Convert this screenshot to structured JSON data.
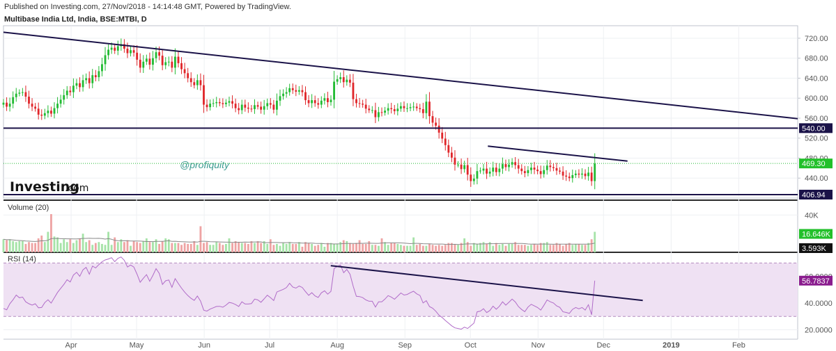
{
  "header": {
    "published": "Published on Investing.com, 27/Nov/2018 - 14:14:48 GMT, Powered by TradingView.",
    "symbol": "Multibase India Ltd, India, BSE:MTBI, D"
  },
  "watermark": {
    "brand": "Investing",
    "suffix": ".com",
    "tag": "@profiquity"
  },
  "colors": {
    "up": "#22bb33",
    "down": "#e0262a",
    "trendline": "#1a1248",
    "rsi_line": "#b06bc8",
    "rsi_band": "#efe1f3",
    "price_badge": "#22c02a",
    "level_badge": "#1a1248",
    "rsi_badge": "#8a1c8e"
  },
  "chart_data": [
    {
      "type": "candlestick",
      "title": "Multibase India Ltd, India, BSE:MTBI, D",
      "x_labels": [
        "Apr",
        "May",
        "Jun",
        "Jul",
        "Aug",
        "Sep",
        "Oct",
        "Nov",
        "Dec",
        "2019",
        "Feb"
      ],
      "y_ticks": [
        720,
        680,
        640,
        600,
        560,
        520,
        480,
        440
      ],
      "ylim": [
        400,
        745
      ],
      "last_close": "469.30",
      "levels": [
        "540.00",
        "406.94"
      ],
      "trendlines": [
        {
          "from": [
            "2018-03-01",
            732
          ],
          "to": [
            "2019-02-28",
            559
          ]
        },
        {
          "from": [
            "2018-10-09",
            504
          ],
          "to": [
            "2018-12-12",
            474
          ]
        }
      ],
      "closes": [
        591,
        583,
        589,
        602,
        609,
        611,
        612,
        603,
        589,
        583,
        579,
        567,
        565,
        570,
        575,
        569,
        580,
        589,
        597,
        606,
        615,
        612,
        625,
        630,
        622,
        636,
        640,
        630,
        646,
        642,
        654,
        668,
        686,
        697,
        701,
        695,
        704,
        708,
        699,
        690,
        696,
        691,
        677,
        661,
        673,
        679,
        667,
        680,
        692,
        685,
        666,
        672,
        673,
        661,
        683,
        670,
        658,
        650,
        640,
        632,
        626,
        636,
        626,
        587,
        582,
        589,
        590,
        592,
        590,
        588,
        591,
        594,
        589,
        580,
        576,
        587,
        581,
        579,
        578,
        586,
        583,
        577,
        584,
        590,
        587,
        577,
        595,
        604,
        609,
        612,
        620,
        616,
        613,
        616,
        612,
        596,
        590,
        596,
        590,
        587,
        595,
        600,
        592,
        597,
        633,
        638,
        642,
        632,
        637,
        631,
        598,
        590,
        589,
        587,
        579,
        576,
        576,
        562,
        572,
        571,
        575,
        580,
        578,
        574,
        579,
        584,
        580,
        580,
        582,
        583,
        580,
        578,
        570,
        593,
        564,
        551,
        545,
        531,
        519,
        506,
        491,
        481,
        467,
        467,
        458,
        466,
        447,
        434,
        439,
        454,
        455,
        459,
        449,
        453,
        461,
        452,
        459,
        468,
        462,
        467,
        472,
        466,
        459,
        454,
        450,
        456,
        461,
        457,
        454,
        448,
        456,
        465,
        462,
        460,
        455,
        453,
        445,
        443,
        440,
        446,
        449,
        447,
        449,
        444,
        451,
        434,
        469.3
      ],
      "vol_label": "Volume (20)",
      "vol_ticks": [
        "40K"
      ],
      "vol_badges": [
        "16.646K",
        "3.593K"
      ],
      "volumes": [
        14,
        13,
        14,
        12,
        11,
        12,
        12,
        9,
        11,
        10,
        10,
        15,
        18,
        11,
        22,
        41,
        17,
        16,
        10,
        14,
        11,
        14,
        10,
        13,
        15,
        20,
        11,
        13,
        8,
        10,
        11,
        9,
        8,
        22,
        8,
        16,
        11,
        14,
        11,
        13,
        7,
        12,
        11,
        10,
        12,
        15,
        11,
        11,
        14,
        9,
        12,
        15,
        14,
        10,
        10,
        10,
        8,
        10,
        9,
        9,
        12,
        8,
        28,
        10,
        11,
        8,
        8,
        11,
        10,
        8,
        9,
        15,
        10,
        12,
        11,
        10,
        10,
        9,
        12,
        10,
        12,
        10,
        12,
        9,
        14,
        8,
        9,
        7,
        10,
        9,
        11,
        9,
        9,
        11,
        6,
        11,
        10,
        9,
        7,
        8,
        10,
        6,
        10,
        10,
        9,
        9,
        11,
        13,
        12,
        10,
        9,
        10,
        13,
        9,
        9,
        12,
        8,
        8,
        7,
        15,
        11,
        8,
        10,
        10,
        9,
        8,
        7,
        7,
        7,
        16,
        8,
        9,
        7,
        7,
        9,
        8,
        7,
        8,
        7,
        8,
        10,
        10,
        9,
        8,
        10,
        15,
        11,
        7,
        10,
        9,
        10,
        11,
        9,
        11,
        7,
        10,
        8,
        9,
        7,
        9,
        9,
        11,
        8,
        8,
        8,
        7,
        8,
        9,
        8,
        10,
        10,
        11,
        8,
        8,
        10,
        9,
        7,
        9,
        10,
        8,
        9,
        9,
        8,
        8,
        10,
        14,
        22
      ],
      "rsi_label": "RSI (14)",
      "rsi_ticks": [
        60,
        40,
        20
      ],
      "rsi_last": "56.7837",
      "rsi_bands": [
        70,
        30
      ],
      "rsi": [
        36.0,
        35.0,
        39.5,
        42.5,
        46.0,
        44.0,
        44.5,
        41.0,
        39.5,
        38.5,
        39.5,
        36.5,
        36.7,
        40.4,
        42.5,
        40.0,
        44.0,
        48.0,
        51.0,
        54.0,
        57.5,
        55.8,
        61.0,
        63.0,
        60.0,
        64.9,
        66.7,
        61.6,
        67.7,
        66.3,
        68.8,
        71.0,
        72.3,
        73.0,
        74.0,
        71.0,
        73.5,
        74.5,
        72.0,
        67.0,
        68.5,
        67.0,
        61.6,
        55.6,
        58.6,
        61.3,
        56.3,
        60.8,
        65.8,
        62.2,
        54.0,
        56.7,
        57.3,
        51.8,
        58.3,
        54.6,
        51.2,
        48.2,
        45.6,
        43.6,
        42.0,
        45.3,
        41.5,
        34.7,
        34.0,
        35.5,
        36.5,
        37.5,
        37.6,
        36.9,
        38.5,
        40.5,
        40.0,
        38.9,
        37.5,
        41.0,
        39.3,
        39.3,
        39.6,
        43.0,
        42.4,
        40.6,
        43.2,
        45.9,
        44.1,
        41.9,
        48.3,
        49.3,
        50.3,
        51.6,
        54.8,
        52.0,
        51.2,
        52.8,
        51.7,
        48.6,
        45.8,
        47.8,
        45.4,
        44.2,
        47.7,
        49.2,
        46.7,
        48.8,
        65.9,
        67.4,
        68.5,
        62.7,
        65.2,
        61.6,
        52.8,
        45.1,
        44.9,
        44.1,
        42.4,
        41.4,
        41.4,
        37.0,
        41.0,
        40.9,
        43.0,
        45.6,
        44.5,
        42.9,
        45.2,
        47.6,
        46.0,
        46.5,
        47.8,
        48.9,
        46.9,
        45.7,
        40.1,
        41.8,
        37.4,
        36.2,
        33.9,
        31.0,
        29.2,
        27.0,
        25.0,
        23.0,
        21.5,
        21.0,
        20.5,
        22.0,
        21.0,
        23.0,
        25.0,
        33.5,
        34.0,
        35.8,
        32.9,
        34.5,
        37.7,
        35.4,
        37.6,
        41.0,
        38.5,
        40.6,
        43.0,
        40.8,
        37.4,
        35.2,
        33.6,
        37.0,
        39.1,
        37.9,
        36.7,
        34.8,
        38.3,
        42.4,
        41.0,
        40.1,
        37.9,
        36.8,
        33.5,
        33.0,
        32.3,
        35.3,
        36.7,
        35.7,
        36.7,
        34.8,
        38.8,
        31.3,
        56.8
      ]
    }
  ]
}
